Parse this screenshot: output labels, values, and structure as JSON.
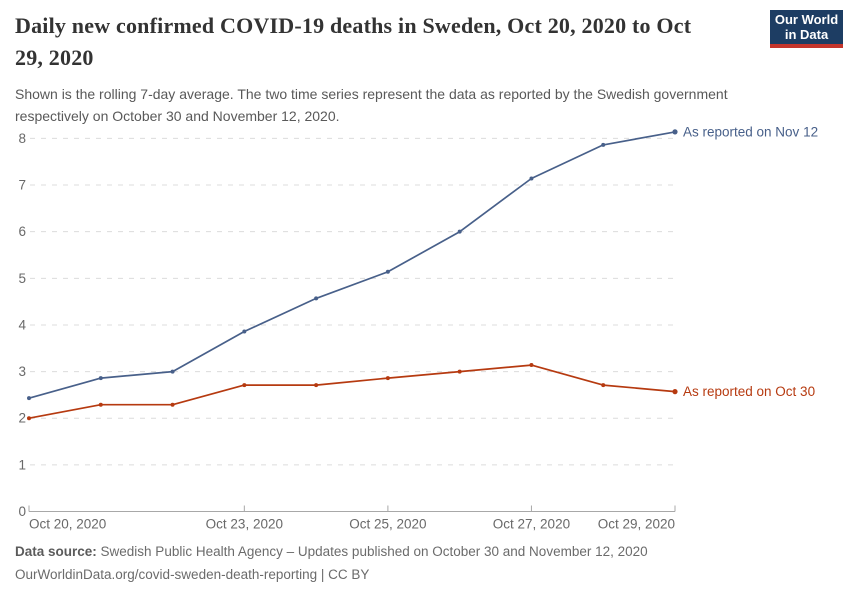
{
  "header": {
    "title": "Daily new confirmed COVID-19 deaths in Sweden, Oct 20, 2020 to Oct 29, 2020",
    "subtitle": "Shown is the rolling 7-day average. The two time series represent the data as reported by the Swedish government respectively on October 30 and November 12, 2020.",
    "logo": {
      "line1": "Our World",
      "line2": "in Data",
      "bg_color": "#1d3d63",
      "stripe_color": "#c4352c"
    }
  },
  "chart_data": {
    "type": "line",
    "title": "Daily new confirmed COVID-19 deaths in Sweden, Oct 20, 2020 to Oct 29, 2020",
    "subtitle": "Shown is the rolling 7-day average.",
    "x": [
      "Oct 20, 2020",
      "Oct 21, 2020",
      "Oct 22, 2020",
      "Oct 23, 2020",
      "Oct 24, 2020",
      "Oct 25, 2020",
      "Oct 26, 2020",
      "Oct 27, 2020",
      "Oct 28, 2020",
      "Oct 29, 2020"
    ],
    "series": [
      {
        "name": "As reported on Nov 12",
        "color": "#48608a",
        "values": [
          2.43,
          2.86,
          3.0,
          3.86,
          4.57,
          5.14,
          6.0,
          7.14,
          7.86,
          8.14
        ]
      },
      {
        "name": "As reported on Oct 30",
        "color": "#b63a10",
        "values": [
          2.0,
          2.29,
          2.29,
          2.71,
          2.71,
          2.86,
          3.0,
          3.14,
          2.71,
          2.57
        ]
      }
    ],
    "yticks": [
      0,
      1,
      2,
      3,
      4,
      5,
      6,
      7,
      8
    ],
    "ylim": [
      0,
      8.5
    ],
    "x_tick_indices": [
      0,
      3,
      5,
      7,
      9
    ],
    "x_tick_labels": [
      "Oct 20, 2020",
      "Oct 23, 2020",
      "Oct 25, 2020",
      "Oct 27, 2020",
      "Oct 29, 2020"
    ],
    "grid": "horizontal-dashed",
    "legend_position": "line-end-labels"
  },
  "footer": {
    "source_label": "Data source:",
    "source_text": " Swedish Public Health Agency – Updates published on October 30 and November 12, 2020",
    "license_line": "OurWorldinData.org/covid-sweden-death-reporting | CC BY"
  }
}
